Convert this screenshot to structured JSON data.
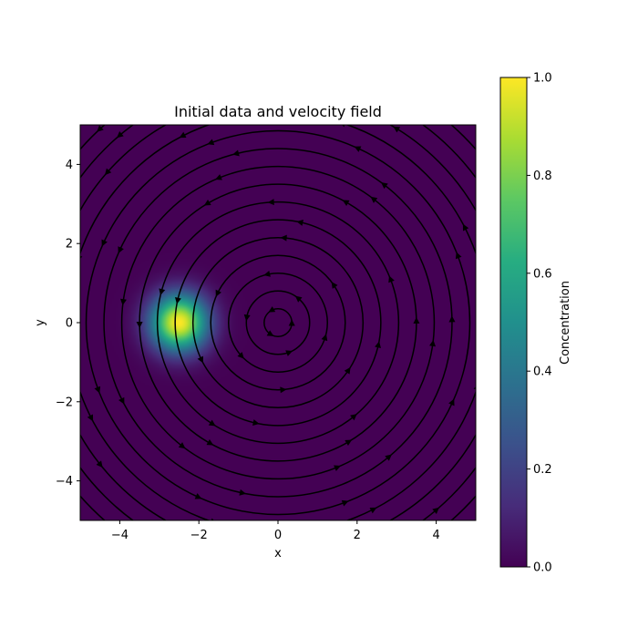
{
  "chart_data": {
    "type": "heatmap",
    "title": "Initial data and velocity field",
    "xlabel": "x",
    "ylabel": "y",
    "xlim": [
      -5,
      5
    ],
    "ylim": [
      -5,
      5
    ],
    "x_ticks": [
      -4,
      -2,
      0,
      2,
      4
    ],
    "y_ticks": [
      -4,
      -2,
      0,
      2,
      4
    ],
    "x_tick_labels": [
      "−4",
      "−2",
      "0",
      "2",
      "4"
    ],
    "y_tick_labels": [
      "−4",
      "−2",
      "0",
      "2",
      "4"
    ],
    "grid": false,
    "colormap": "viridis",
    "scalar_field": {
      "shape": "gaussian",
      "center": [
        -2.5,
        0.0
      ],
      "peak": 1.0,
      "sigma": 0.5
    },
    "velocity_field": {
      "type": "rotation",
      "center": [
        0,
        0
      ],
      "direction": "counterclockwise",
      "streamline_radii": [
        0.35,
        0.8,
        1.25,
        1.7,
        2.15,
        2.6,
        3.05,
        3.5,
        3.95,
        4.4,
        4.85,
        5.3,
        5.75,
        6.2,
        6.65
      ]
    },
    "colorbar": {
      "label": "Concentration",
      "range": [
        0.0,
        1.0
      ],
      "ticks": [
        0.0,
        0.2,
        0.4,
        0.6,
        0.8,
        1.0
      ],
      "tick_labels": [
        "0.0",
        "0.2",
        "0.4",
        "0.6",
        "0.8",
        "1.0"
      ]
    },
    "colors": {
      "streamline": "#000000",
      "background": "#440154"
    }
  }
}
